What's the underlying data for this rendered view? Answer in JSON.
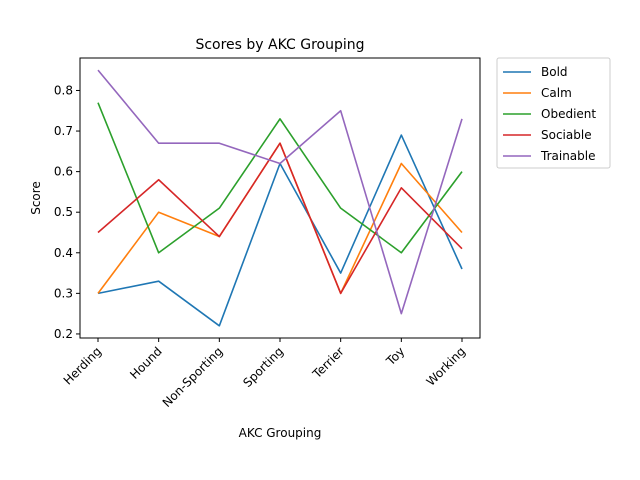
{
  "chart_data": {
    "type": "line",
    "title": "Scores by AKC Grouping",
    "xlabel": "AKC Grouping",
    "ylabel": "Score",
    "categories": [
      "Herding",
      "Hound",
      "Non-Sporting",
      "Sporting",
      "Terrier",
      "Toy",
      "Working"
    ],
    "yticks": [
      "0.2",
      "0.3",
      "0.4",
      "0.5",
      "0.6",
      "0.7",
      "0.8"
    ],
    "ylim": [
      0.19,
      0.88
    ],
    "grid": false,
    "legend_position": "outside-top-right",
    "series": [
      {
        "name": "Bold",
        "color": "#1f77b4",
        "values": [
          0.3,
          0.33,
          0.22,
          0.62,
          0.35,
          0.69,
          0.36
        ]
      },
      {
        "name": "Calm",
        "color": "#ff7f0e",
        "values": [
          0.3,
          0.5,
          0.44,
          0.67,
          0.3,
          0.62,
          0.45
        ]
      },
      {
        "name": "Obedient",
        "color": "#2ca02c",
        "values": [
          0.77,
          0.4,
          0.51,
          0.73,
          0.51,
          0.4,
          0.6
        ]
      },
      {
        "name": "Sociable",
        "color": "#d62728",
        "values": [
          0.45,
          0.58,
          0.44,
          0.67,
          0.3,
          0.56,
          0.41
        ]
      },
      {
        "name": "Trainable",
        "color": "#9467bd",
        "values": [
          0.85,
          0.67,
          0.67,
          0.62,
          0.75,
          0.25,
          0.73
        ]
      }
    ]
  }
}
